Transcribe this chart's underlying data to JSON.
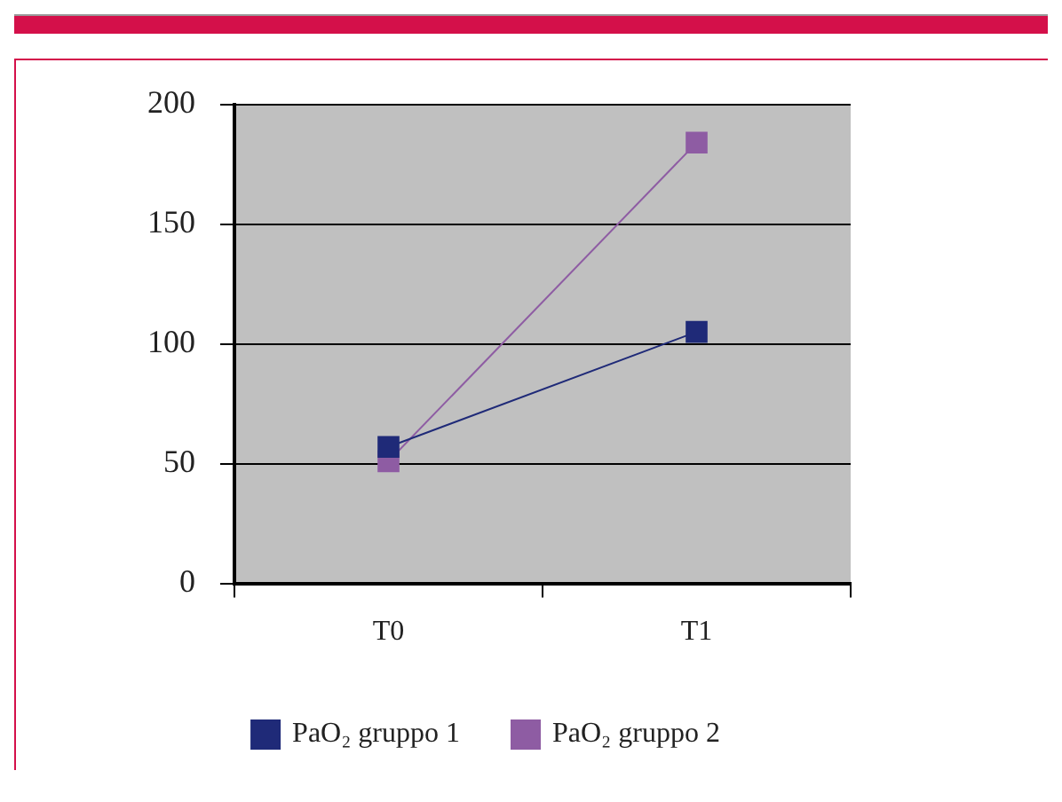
{
  "chart_data": {
    "type": "line",
    "categories": [
      "T0",
      "T1"
    ],
    "series": [
      {
        "name": "PaO₂ gruppo 1",
        "color": "#1f2a78",
        "values": [
          57,
          105
        ]
      },
      {
        "name": "PaO₂ gruppo 2",
        "color": "#8e5ca3",
        "values": [
          51,
          184
        ]
      }
    ],
    "ylim": [
      0,
      200
    ],
    "yticks": [
      0,
      50,
      100,
      150,
      200
    ],
    "grid": "y",
    "legend": "bottom",
    "marker": "square",
    "line_style": "solid"
  }
}
